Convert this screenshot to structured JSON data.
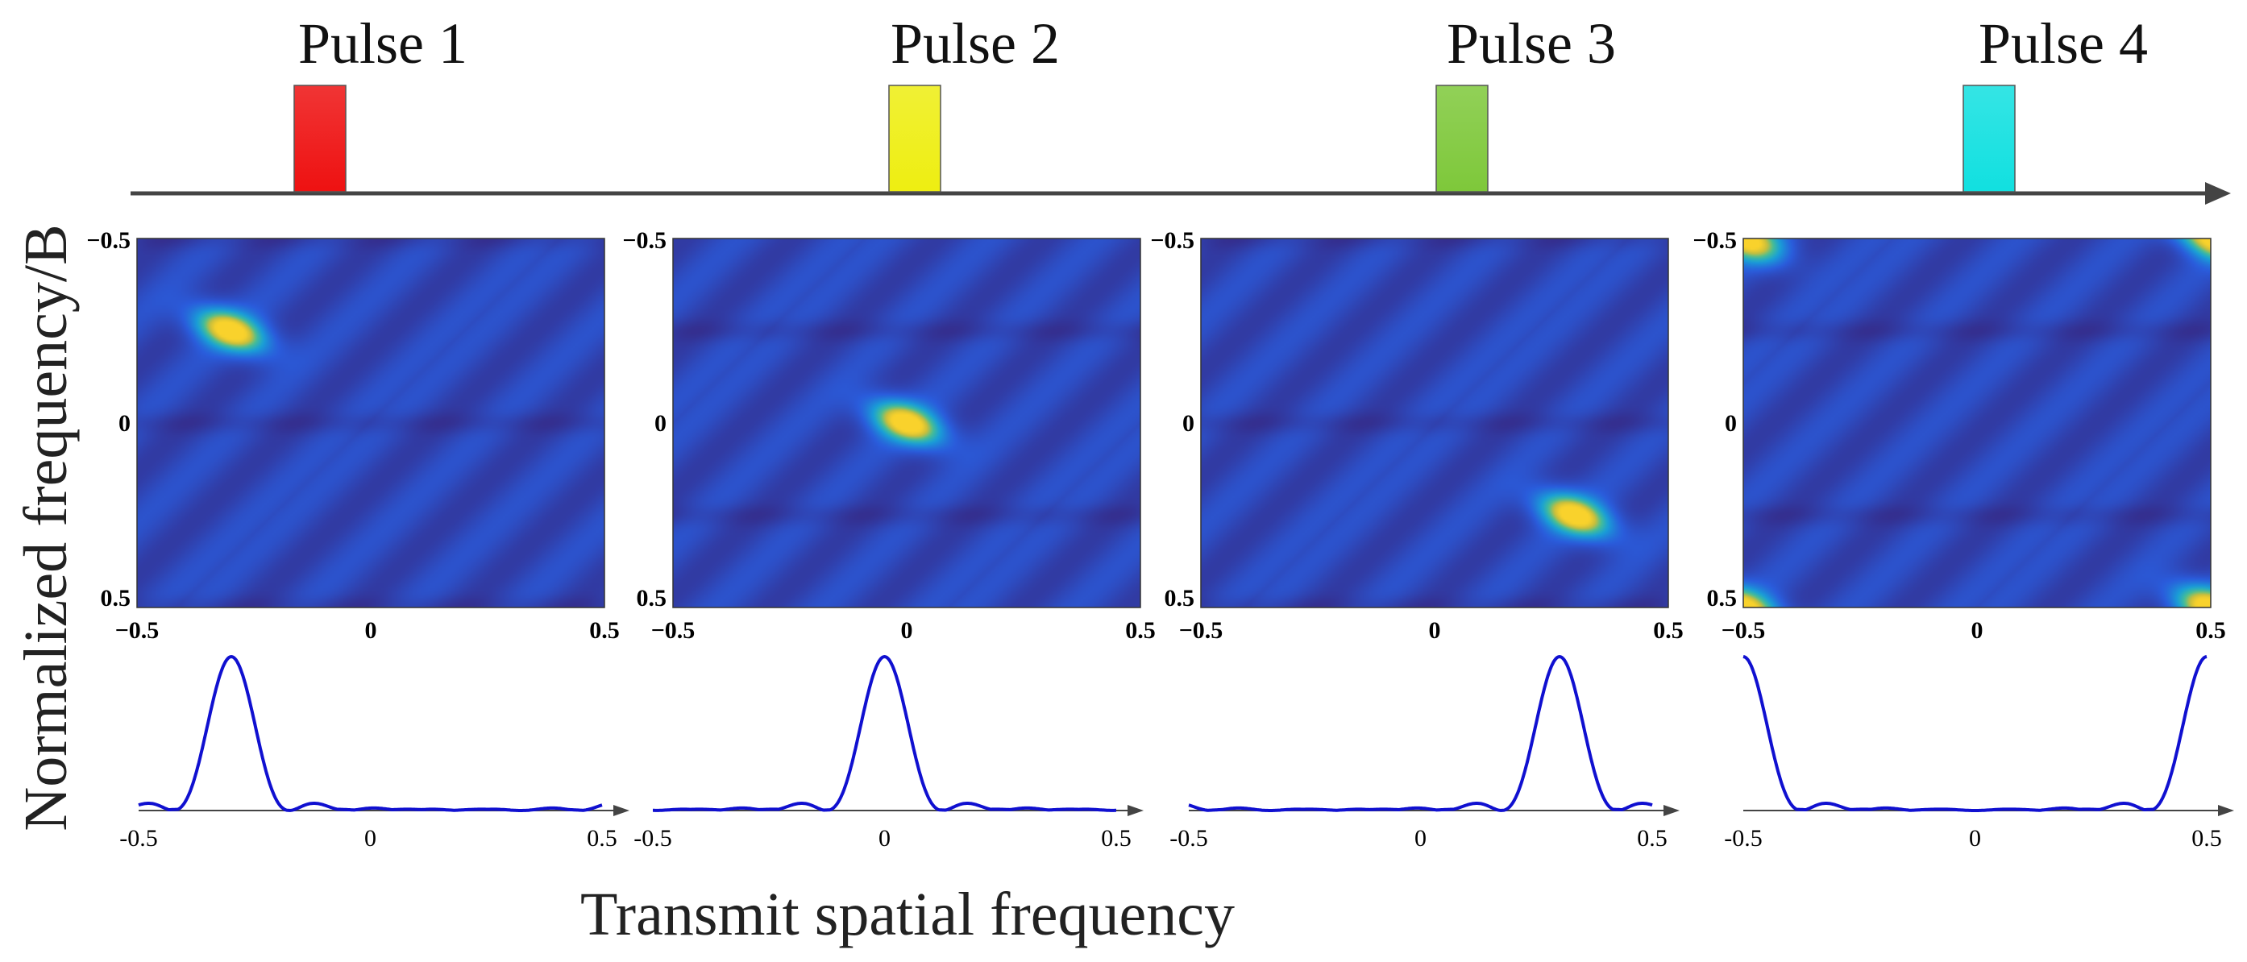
{
  "figure": {
    "xlabel": "Transmit spatial frequency",
    "ylabel": "Normalized frequency/B"
  },
  "colors": {
    "timeline": "#444444",
    "beam_line": "#1010d0",
    "map_low": "#352a87",
    "map_mid": "#1ea7d6",
    "map_high": "#f9d22c"
  },
  "chart_data": [
    {
      "type": "heatmap",
      "title": "Pulse 1",
      "pulse_color": "#ee1111",
      "peak_spatial": -0.3,
      "peak_frequency": -0.25,
      "xlim": [
        -0.5,
        0.5
      ],
      "ylim": [
        -0.5,
        0.5
      ],
      "x_ticks": [
        "−0.5",
        "0",
        "0.5"
      ],
      "y_ticks": [
        "−0.5",
        "0",
        "0.5"
      ],
      "beam_profile": {
        "type": "line",
        "peak_x": -0.3,
        "sidelobe_level": 0.06,
        "x_ticks": [
          "-0.5",
          "0",
          "0.5"
        ]
      }
    },
    {
      "type": "heatmap",
      "title": "Pulse 2",
      "pulse_color": "#eeee11",
      "peak_spatial": 0.0,
      "peak_frequency": 0.0,
      "xlim": [
        -0.5,
        0.5
      ],
      "ylim": [
        -0.5,
        0.5
      ],
      "x_ticks": [
        "−0.5",
        "0",
        "0.5"
      ],
      "y_ticks": [
        "−0.5",
        "0",
        "0.5"
      ],
      "beam_profile": {
        "type": "line",
        "peak_x": 0.0,
        "sidelobe_level": 0.06,
        "x_ticks": [
          "-0.5",
          "0",
          "0.5"
        ]
      }
    },
    {
      "type": "heatmap",
      "title": "Pulse 3",
      "pulse_color": "#7ec83a",
      "peak_spatial": 0.3,
      "peak_frequency": 0.25,
      "xlim": [
        -0.5,
        0.5
      ],
      "ylim": [
        -0.5,
        0.5
      ],
      "x_ticks": [
        "−0.5",
        "0",
        "0.5"
      ],
      "y_ticks": [
        "−0.5",
        "0",
        "0.5"
      ],
      "beam_profile": {
        "type": "line",
        "peak_x": 0.3,
        "sidelobe_level": 0.06,
        "x_ticks": [
          "-0.5",
          "0",
          "0.5"
        ]
      }
    },
    {
      "type": "heatmap",
      "title": "Pulse 4",
      "pulse_color": "#11e0e0",
      "peak_spatial": 0.5,
      "peak_frequency": 0.5,
      "xlim": [
        -0.5,
        0.5
      ],
      "ylim": [
        -0.5,
        0.5
      ],
      "x_ticks": [
        "−0.5",
        "0",
        "0.5"
      ],
      "y_ticks": [
        "−0.5",
        "0",
        "0.5"
      ],
      "beam_profile": {
        "type": "line",
        "peak_x": 0.5,
        "sidelobe_level": 0.06,
        "x_ticks": [
          "-0.5",
          "0",
          "0.5"
        ]
      }
    }
  ]
}
